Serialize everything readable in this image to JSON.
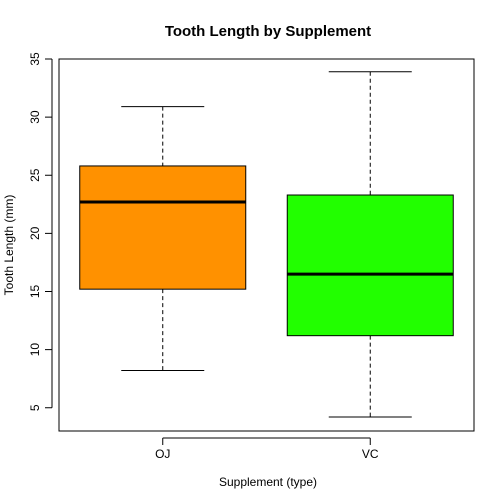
{
  "chart_data": {
    "type": "boxplot",
    "title": "Tooth Length by Supplement",
    "xlabel": "Supplement (type)",
    "ylabel": "Tooth Length (mm)",
    "categories": [
      "OJ",
      "VC"
    ],
    "boxes": [
      {
        "category": "OJ",
        "min": 8.2,
        "q1": 15.2,
        "median": 22.7,
        "q3": 25.8,
        "max": 30.9,
        "color": "#ff9100"
      },
      {
        "category": "VC",
        "min": 4.2,
        "q1": 11.2,
        "median": 16.5,
        "q3": 23.3,
        "max": 33.9,
        "color": "#22ff00"
      }
    ],
    "ylim": [
      3,
      35
    ],
    "yticks": [
      5,
      10,
      15,
      20,
      25,
      30,
      35
    ],
    "grid": false
  }
}
